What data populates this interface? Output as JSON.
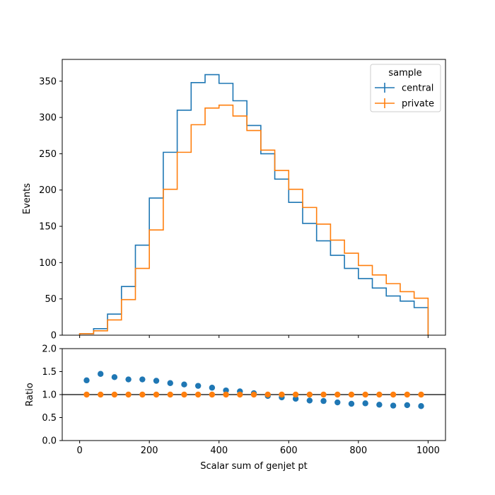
{
  "chart_data": [
    {
      "type": "step",
      "panel": "main",
      "xlabel": "",
      "ylabel": "Events",
      "xlim": [
        -50,
        1050
      ],
      "ylim": [
        0,
        380
      ],
      "yticks": [
        0,
        50,
        100,
        150,
        200,
        250,
        300,
        350
      ],
      "xticks": [
        0,
        200,
        400,
        600,
        800,
        1000
      ],
      "bin_edges": [
        0,
        40,
        80,
        120,
        160,
        200,
        240,
        280,
        320,
        360,
        400,
        440,
        480,
        520,
        560,
        600,
        640,
        680,
        720,
        760,
        800,
        840,
        880,
        920,
        960,
        1000
      ],
      "legend": {
        "title": "sample",
        "placement": "top-right"
      },
      "series": [
        {
          "name": "central",
          "color": "#1f77b4",
          "values": [
            2,
            9,
            29,
            67,
            124,
            189,
            252,
            310,
            348,
            359,
            347,
            323,
            289,
            250,
            215,
            183,
            154,
            130,
            110,
            92,
            78,
            65,
            54,
            47,
            38
          ]
        },
        {
          "name": "private",
          "color": "#ff7f0e",
          "values": [
            2,
            6,
            21,
            49,
            92,
            145,
            201,
            252,
            290,
            313,
            317,
            302,
            282,
            255,
            227,
            201,
            176,
            153,
            131,
            113,
            96,
            83,
            71,
            60,
            51
          ]
        }
      ]
    },
    {
      "type": "scatter",
      "panel": "ratio",
      "xlabel": "Scalar sum of genjet pt",
      "ylabel": "Ratio",
      "xlim": [
        -50,
        1050
      ],
      "ylim": [
        0,
        2
      ],
      "yticks": [
        "0.0",
        "0.5",
        "1.0",
        "1.5",
        "2.0"
      ],
      "xticks": [
        0,
        200,
        400,
        600,
        800,
        1000
      ],
      "reference_line": 1,
      "x": [
        20,
        60,
        100,
        140,
        180,
        220,
        260,
        300,
        340,
        380,
        420,
        460,
        500,
        540,
        580,
        620,
        660,
        700,
        740,
        780,
        820,
        860,
        900,
        940,
        980
      ],
      "series": [
        {
          "name": "central",
          "color": "#1f77b4",
          "values": [
            1.31,
            1.45,
            1.38,
            1.33,
            1.33,
            1.3,
            1.25,
            1.22,
            1.19,
            1.15,
            1.09,
            1.07,
            1.03,
            0.97,
            0.94,
            0.91,
            0.87,
            0.86,
            0.83,
            0.8,
            0.81,
            0.78,
            0.76,
            0.77,
            0.75
          ]
        },
        {
          "name": "private",
          "color": "#ff7f0e",
          "values": [
            1,
            1,
            1,
            1,
            1,
            1,
            1,
            1,
            1,
            1,
            1,
            1,
            1,
            1,
            1,
            1,
            1,
            1,
            1,
            1,
            1,
            1,
            1,
            1,
            1
          ]
        }
      ]
    }
  ]
}
